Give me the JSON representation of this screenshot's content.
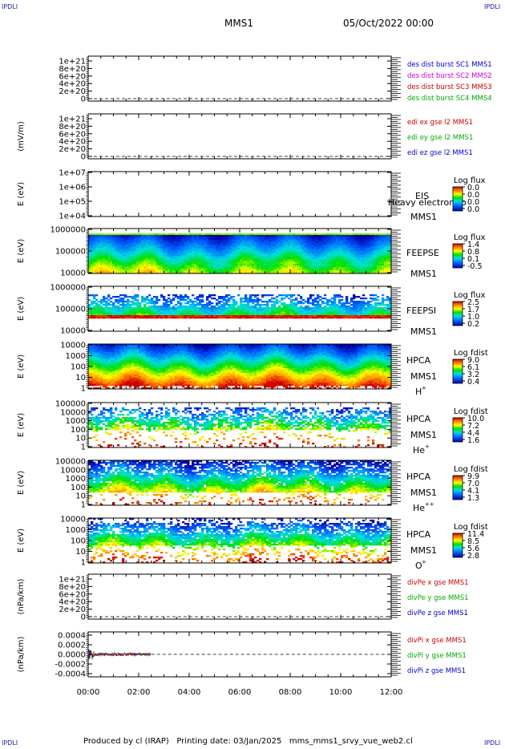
{
  "corners": {
    "tl": "IPDLI",
    "tr": "IPDLI",
    "bl": "IPDLI",
    "br": "IPDLI"
  },
  "header": {
    "title": "MMS1",
    "date": "05/Oct/2022 00:00"
  },
  "footer": {
    "text": "Produced by cl (IRAP)   Printing date: 03/Jan/2025   mms_mms1_srvy_vue_web2.cl"
  },
  "chart_data": {
    "type": "spectrogram",
    "x_ticks": [
      "00:00",
      "02:00",
      "04:00",
      "06:00",
      "08:00",
      "10:00",
      "12:00"
    ],
    "panels": [
      {
        "id": "p1",
        "kind": "line",
        "ylabel": "",
        "yticks": [
          "1e+21",
          "8e+20",
          "6e+20",
          "4e+20",
          "2e+20",
          "0"
        ],
        "legend": [
          {
            "text": "des dist burst SC1 MMS1",
            "color": "#0000cc"
          },
          {
            "text": "des dist burst SC2 MMS2",
            "color": "#cc00cc"
          },
          {
            "text": "des dist burst SC3 MMS3",
            "color": "#cc0000"
          },
          {
            "text": "des dist burst SC4 MMS4",
            "color": "#00aa00"
          }
        ]
      },
      {
        "id": "p2",
        "kind": "line",
        "ylabel": "(mV/m)",
        "yticks": [
          "1e+21",
          "8e+20",
          "6e+20",
          "4e+20",
          "2e+20",
          "0"
        ],
        "legend": [
          {
            "text": "edi ex gse l2 MMS1",
            "color": "#cc0000"
          },
          {
            "text": "edi ey gse l2 MMS1",
            "color": "#00aa00"
          },
          {
            "text": "edi ez gse l2 MMS1",
            "color": "#0000cc"
          }
        ]
      },
      {
        "id": "p3",
        "kind": "spec-empty",
        "ylabel": "E (eV)",
        "yticks": [
          "1e+07",
          "1e+06",
          "1e+05",
          "1e+04"
        ],
        "right": [
          "EIS",
          "MMS1"
        ],
        "overlay": "Heavy electron to",
        "cb_title": "Log flux",
        "cb_ticks": [
          "0.0",
          "0.0",
          "0.0",
          "0.0"
        ]
      },
      {
        "id": "p4",
        "kind": "spec-feepse",
        "ylabel": "E (eV)",
        "yticks": [
          "1000000",
          "100000",
          "10000"
        ],
        "right": [
          "FEEPSE",
          "MMS1"
        ],
        "cb_title": "Log flux",
        "cb_ticks": [
          "1.4",
          "0.8",
          "0.1",
          "-0.5"
        ]
      },
      {
        "id": "p5",
        "kind": "spec-feepsi",
        "ylabel": "E (eV)",
        "yticks": [
          "1000000",
          "100000",
          "10000"
        ],
        "right": [
          "FEEPSI",
          "MMS1"
        ],
        "cb_title": "Log flux",
        "cb_ticks": [
          "2.5",
          "1.7",
          "1.0",
          "0.2"
        ]
      },
      {
        "id": "p6",
        "kind": "spec-hpca-h",
        "ylabel": "E (eV)",
        "yticks": [
          "10000",
          "1000",
          "100",
          "10",
          "1"
        ],
        "right": [
          "HPCA",
          "MMS1"
        ],
        "species": "H",
        "sup": "+",
        "cb_title": "Log fdist",
        "cb_ticks": [
          "9.0",
          "6.1",
          "3.2",
          "0.4"
        ]
      },
      {
        "id": "p7",
        "kind": "spec-hpca-he",
        "ylabel": "E (eV)",
        "yticks": [
          "100000",
          "10000",
          "1000",
          "100",
          "10",
          "1"
        ],
        "right": [
          "HPCA",
          "MMS1"
        ],
        "species": "He",
        "sup": "+",
        "cb_title": "Log fdist",
        "cb_ticks": [
          "10.0",
          "7.2",
          "4.4",
          "1.6"
        ]
      },
      {
        "id": "p8",
        "kind": "spec-hpca-hepp",
        "ylabel": "E (eV)",
        "yticks": [
          "100000",
          "10000",
          "1000",
          "100",
          "10",
          "1"
        ],
        "right": [
          "HPCA",
          "MMS1"
        ],
        "species": "He",
        "sup": "++",
        "cb_title": "Log fdist",
        "cb_ticks": [
          "9.9",
          "7.0",
          "4.1",
          "1.3"
        ]
      },
      {
        "id": "p9",
        "kind": "spec-hpca-o",
        "ylabel": "E (eV)",
        "yticks": [
          "10000",
          "1000",
          "100",
          "10",
          "1"
        ],
        "right": [
          "HPCA",
          "MMS1"
        ],
        "species": "O",
        "sup": "+",
        "cb_title": "Log fdist",
        "cb_ticks": [
          "11.4",
          "8.5",
          "5.6",
          "2.8"
        ]
      },
      {
        "id": "p10",
        "kind": "line",
        "ylabel": "(nPa/km)",
        "yticks": [
          "1e+21",
          "8e+20",
          "6e+20",
          "4e+20",
          "2e+20",
          "0"
        ],
        "legend": [
          {
            "text": "divPe x gse MMS1",
            "color": "#cc0000"
          },
          {
            "text": "divPe y gse MMS1",
            "color": "#00aa00"
          },
          {
            "text": "divPe z gse MMS1",
            "color": "#0000cc"
          }
        ]
      },
      {
        "id": "p11",
        "kind": "line-data",
        "ylabel": "(nPa/km)",
        "yticks": [
          "0.0004",
          "0.0002",
          "0.0000",
          "-0.0002",
          "-0.0004"
        ],
        "data_end": "02:30",
        "legend": [
          {
            "text": "divPi x gse MMS1",
            "color": "#cc0000"
          },
          {
            "text": "divPi y gse MMS1",
            "color": "#00aa00"
          },
          {
            "text": "divPi z gse MMS1",
            "color": "#0000cc"
          }
        ]
      }
    ]
  }
}
